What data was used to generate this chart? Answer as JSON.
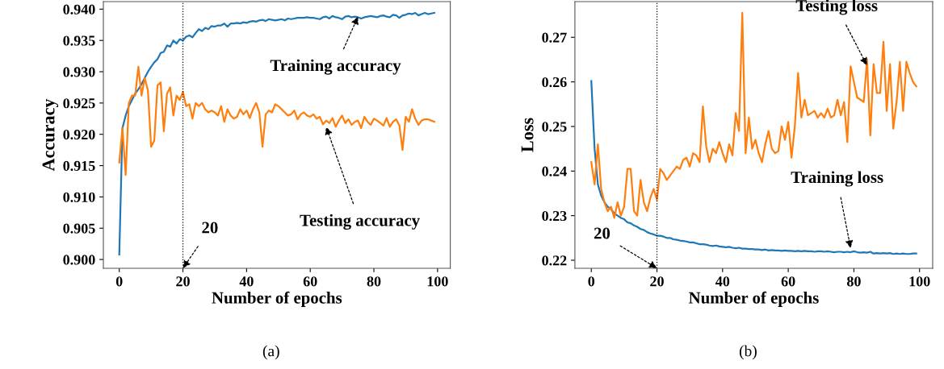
{
  "chart_data": [
    {
      "type": "line",
      "xlabel": "Number of epochs",
      "ylabel": "Accuracy",
      "xlim": [
        -5,
        104
      ],
      "ylim": [
        0.8986,
        0.9412
      ],
      "xticks": [
        0,
        20,
        40,
        60,
        80,
        100
      ],
      "yticks": [
        {
          "value": 0.9,
          "label": "0.900"
        },
        {
          "value": 0.905,
          "label": "0.905"
        },
        {
          "value": 0.91,
          "label": "0.910"
        },
        {
          "value": 0.915,
          "label": "0.915"
        },
        {
          "value": 0.92,
          "label": "0.920"
        },
        {
          "value": 0.925,
          "label": "0.925"
        },
        {
          "value": 0.93,
          "label": "0.930"
        },
        {
          "value": 0.935,
          "label": "0.935"
        },
        {
          "value": 0.94,
          "label": "0.940"
        }
      ],
      "grid": false,
      "marker": "none",
      "line_style": "solid",
      "x": [
        0,
        1,
        2,
        3,
        4,
        5,
        6,
        7,
        8,
        9,
        10,
        11,
        12,
        13,
        14,
        15,
        16,
        17,
        18,
        19,
        20,
        21,
        22,
        23,
        24,
        25,
        26,
        27,
        28,
        29,
        30,
        31,
        32,
        33,
        34,
        35,
        36,
        37,
        38,
        39,
        40,
        41,
        42,
        43,
        44,
        45,
        46,
        47,
        48,
        49,
        50,
        51,
        52,
        53,
        54,
        55,
        56,
        57,
        58,
        59,
        60,
        61,
        62,
        63,
        64,
        65,
        66,
        67,
        68,
        69,
        70,
        71,
        72,
        73,
        74,
        75,
        76,
        77,
        78,
        79,
        80,
        81,
        82,
        83,
        84,
        85,
        86,
        87,
        88,
        89,
        90,
        91,
        92,
        93,
        94,
        95,
        96,
        97,
        98,
        99
      ],
      "series": [
        {
          "color": "#1f77b4",
          "values": [
            0.9008,
            0.921,
            0.923,
            0.9245,
            0.9255,
            0.9265,
            0.9272,
            0.928,
            0.929,
            0.93,
            0.9308,
            0.9315,
            0.932,
            0.933,
            0.9332,
            0.9342,
            0.934,
            0.935,
            0.9345,
            0.9352,
            0.935,
            0.9356,
            0.9358,
            0.9355,
            0.9362,
            0.9368,
            0.9365,
            0.937,
            0.9368,
            0.9373,
            0.9372,
            0.9374,
            0.9374,
            0.9377,
            0.9372,
            0.9377,
            0.9377,
            0.9378,
            0.9377,
            0.9379,
            0.9378,
            0.938,
            0.9381,
            0.938,
            0.9382,
            0.9383,
            0.9381,
            0.9384,
            0.9383,
            0.9382,
            0.9383,
            0.9384,
            0.9382,
            0.9385,
            0.9384,
            0.9385,
            0.9386,
            0.9386,
            0.9386,
            0.9387,
            0.9386,
            0.9386,
            0.9385,
            0.9384,
            0.9387,
            0.9388,
            0.9385,
            0.9389,
            0.9387,
            0.9386,
            0.9384,
            0.9388,
            0.9389,
            0.9387,
            0.9388,
            0.9387,
            0.9385,
            0.9387,
            0.9388,
            0.9389,
            0.9388,
            0.9387,
            0.9389,
            0.939,
            0.9388,
            0.9387,
            0.9391,
            0.939,
            0.9386,
            0.939,
            0.9391,
            0.9393,
            0.9392,
            0.9394,
            0.939,
            0.9392,
            0.9394,
            0.9392,
            0.9393,
            0.9394
          ]
        },
        {
          "color": "#ff7f0e",
          "values": [
            0.9155,
            0.921,
            0.9135,
            0.925,
            0.9262,
            0.9262,
            0.9308,
            0.9262,
            0.929,
            0.927,
            0.918,
            0.919,
            0.9278,
            0.9283,
            0.9205,
            0.9265,
            0.9275,
            0.923,
            0.9262,
            0.9255,
            0.9268,
            0.9245,
            0.9248,
            0.9225,
            0.925,
            0.9245,
            0.925,
            0.924,
            0.9235,
            0.9238,
            0.9235,
            0.923,
            0.9245,
            0.922,
            0.924,
            0.923,
            0.9225,
            0.9228,
            0.924,
            0.9232,
            0.9238,
            0.9226,
            0.924,
            0.925,
            0.9235,
            0.918,
            0.9232,
            0.9238,
            0.9235,
            0.9248,
            0.9245,
            0.924,
            0.9235,
            0.923,
            0.9232,
            0.9238,
            0.9224,
            0.9232,
            0.9235,
            0.923,
            0.9228,
            0.9232,
            0.9225,
            0.9228,
            0.9216,
            0.9222,
            0.9218,
            0.9226,
            0.9212,
            0.9222,
            0.923,
            0.9218,
            0.9224,
            0.9215,
            0.922,
            0.9222,
            0.921,
            0.9228,
            0.922,
            0.9215,
            0.9225,
            0.9222,
            0.9218,
            0.9214,
            0.9226,
            0.9212,
            0.922,
            0.9224,
            0.9214,
            0.9175,
            0.9228,
            0.922,
            0.924,
            0.9225,
            0.9215,
            0.9222,
            0.9224,
            0.9224,
            0.9222,
            0.922
          ]
        }
      ],
      "ref_lines": [
        {
          "axis": "x",
          "value": 20,
          "color": "#000000",
          "line_style": "dotted"
        }
      ],
      "annotations": [
        {
          "text": "Training accuracy",
          "x": 75,
          "y": 0.9388
        },
        {
          "text": "Testing accuracy",
          "x": 65,
          "y": 0.9212
        },
        {
          "text": "20",
          "x": 20,
          "y": 0.8986
        },
        "(a)"
      ]
    },
    {
      "type": "line",
      "xlabel": "Number of epochs",
      "ylabel": "Loss",
      "xlim": [
        -5,
        104
      ],
      "ylim": [
        0.2182,
        0.278
      ],
      "xticks": [
        0,
        20,
        40,
        60,
        80,
        100
      ],
      "yticks": [
        0.22,
        0.23,
        0.24,
        0.25,
        0.26,
        0.27
      ],
      "grid": false,
      "marker": "none",
      "line_style": "solid",
      "x": [
        0,
        1,
        2,
        3,
        4,
        5,
        6,
        7,
        8,
        9,
        10,
        11,
        12,
        13,
        14,
        15,
        16,
        17,
        18,
        19,
        20,
        21,
        22,
        23,
        24,
        25,
        26,
        27,
        28,
        29,
        30,
        31,
        32,
        33,
        34,
        35,
        36,
        37,
        38,
        39,
        40,
        41,
        42,
        43,
        44,
        45,
        46,
        47,
        48,
        49,
        50,
        51,
        52,
        53,
        54,
        55,
        56,
        57,
        58,
        59,
        60,
        61,
        62,
        63,
        64,
        65,
        66,
        67,
        68,
        69,
        70,
        71,
        72,
        73,
        74,
        75,
        76,
        77,
        78,
        79,
        80,
        81,
        82,
        83,
        84,
        85,
        86,
        87,
        88,
        89,
        90,
        91,
        92,
        93,
        94,
        95,
        96,
        97,
        98,
        99
      ],
      "series": [
        {
          "color": "#1f77b4",
          "values": [
            0.2602,
            0.245,
            0.237,
            0.2345,
            0.233,
            0.232,
            0.2315,
            0.2305,
            0.23,
            0.2295,
            0.2292,
            0.2285,
            0.2283,
            0.2278,
            0.2275,
            0.227,
            0.2268,
            0.2263,
            0.226,
            0.2258,
            0.2255,
            0.2255,
            0.2253,
            0.225,
            0.225,
            0.2247,
            0.2246,
            0.2244,
            0.2243,
            0.2242,
            0.224,
            0.224,
            0.2238,
            0.2236,
            0.2236,
            0.2235,
            0.2233,
            0.2232,
            0.2233,
            0.2231,
            0.223,
            0.2229,
            0.223,
            0.2228,
            0.2227,
            0.2228,
            0.2226,
            0.2226,
            0.2225,
            0.2225,
            0.2224,
            0.2224,
            0.2223,
            0.2224,
            0.2222,
            0.2223,
            0.2222,
            0.2222,
            0.2221,
            0.2222,
            0.2221,
            0.2221,
            0.222,
            0.2221,
            0.222,
            0.2221,
            0.222,
            0.222,
            0.2219,
            0.222,
            0.222,
            0.2219,
            0.222,
            0.2219,
            0.2218,
            0.2219,
            0.2219,
            0.2218,
            0.2219,
            0.2218,
            0.222,
            0.2218,
            0.2217,
            0.2218,
            0.2217,
            0.2219,
            0.2215,
            0.2216,
            0.2215,
            0.2216,
            0.2215,
            0.2216,
            0.2214,
            0.2215,
            0.2214,
            0.2215,
            0.2214,
            0.2214,
            0.2215,
            0.2215
          ]
        },
        {
          "color": "#ff7f0e",
          "values": [
            0.242,
            0.237,
            0.246,
            0.236,
            0.233,
            0.231,
            0.232,
            0.2295,
            0.233,
            0.23,
            0.232,
            0.2405,
            0.2405,
            0.231,
            0.23,
            0.238,
            0.233,
            0.231,
            0.234,
            0.236,
            0.2335,
            0.2405,
            0.2395,
            0.238,
            0.239,
            0.24,
            0.241,
            0.2405,
            0.2425,
            0.243,
            0.241,
            0.244,
            0.2435,
            0.242,
            0.2545,
            0.2455,
            0.242,
            0.245,
            0.244,
            0.2465,
            0.244,
            0.242,
            0.246,
            0.2435,
            0.253,
            0.249,
            0.2755,
            0.244,
            0.252,
            0.245,
            0.247,
            0.244,
            0.242,
            0.246,
            0.249,
            0.245,
            0.244,
            0.2445,
            0.25,
            0.247,
            0.251,
            0.243,
            0.25,
            0.262,
            0.252,
            0.256,
            0.2525,
            0.253,
            0.2535,
            0.252,
            0.253,
            0.252,
            0.254,
            0.252,
            0.2525,
            0.256,
            0.2525,
            0.2555,
            0.2465,
            0.2635,
            0.26,
            0.2565,
            0.256,
            0.2555,
            0.265,
            0.248,
            0.264,
            0.2575,
            0.2575,
            0.269,
            0.2535,
            0.264,
            0.2495,
            0.2555,
            0.2645,
            0.2535,
            0.2645,
            0.262,
            0.26,
            0.259
          ]
        }
      ],
      "ref_lines": [
        {
          "axis": "x",
          "value": 20,
          "color": "#000000",
          "line_style": "dotted"
        }
      ],
      "annotations": [
        {
          "text": "Testing loss",
          "x": 84,
          "y": 0.2637
        },
        {
          "text": "Training loss",
          "x": 79,
          "y": 0.2227
        },
        {
          "text": "20",
          "x": 20,
          "y": 0.2182
        },
        "(b)"
      ]
    }
  ]
}
